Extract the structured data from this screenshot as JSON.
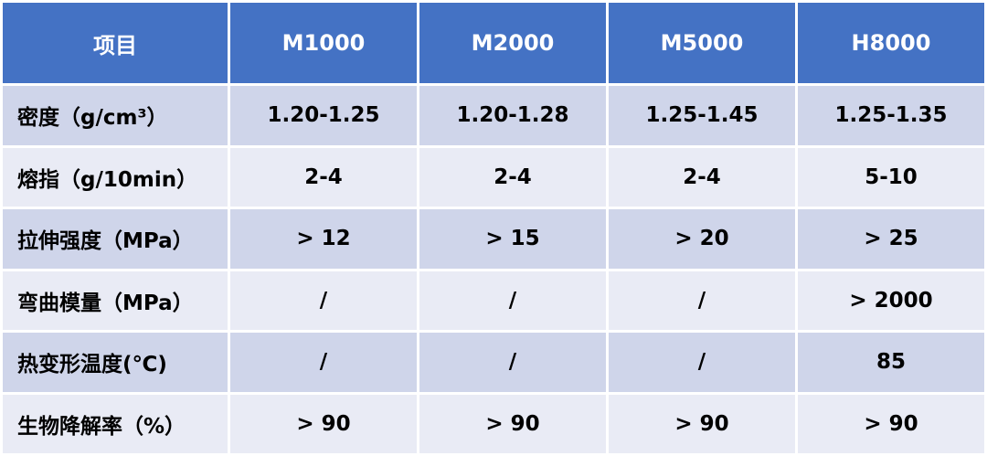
{
  "table": {
    "header_bg": "#4472c4",
    "row_bg_odd": "#cfd5ea",
    "row_bg_even": "#e9ebf5",
    "columns": [
      "项目",
      "M1000",
      "M2000",
      "M5000",
      "H8000"
    ],
    "rows": [
      {
        "label": "密度（g/cm³）",
        "values": [
          "1.20-1.25",
          "1.20-1.28",
          "1.25-1.45",
          "1.25-1.35"
        ]
      },
      {
        "label": "熔指（g/10min）",
        "values": [
          "2-4",
          "2-4",
          "2-4",
          "5-10"
        ]
      },
      {
        "label": "拉伸强度（MPa）",
        "values": [
          "> 12",
          "> 15",
          "> 20",
          "> 25"
        ]
      },
      {
        "label": "弯曲模量（MPa）",
        "values": [
          "/",
          "/",
          "/",
          "> 2000"
        ]
      },
      {
        "label": "热变形温度(℃)",
        "values": [
          "/",
          "/",
          "/",
          "85"
        ]
      },
      {
        "label": "生物降解率（%）",
        "values": [
          "> 90",
          "> 90",
          "> 90",
          "> 90"
        ]
      }
    ]
  }
}
